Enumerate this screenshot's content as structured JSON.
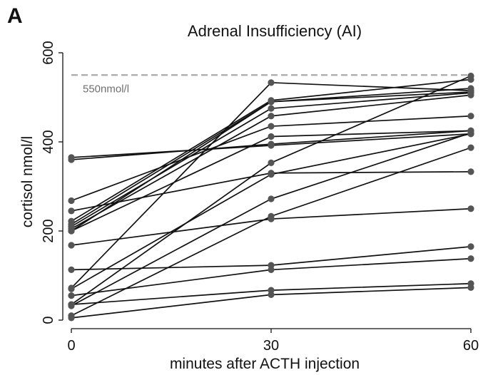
{
  "panel_label": "A",
  "chart_data": {
    "type": "line",
    "title": "Adrenal Insufficiency (AI)",
    "xlabel": "minutes after ACTH injection",
    "ylabel": "cortisol nmol/l",
    "x": [
      0,
      30,
      60
    ],
    "xticks": [
      "0",
      "30",
      "60"
    ],
    "yticks": [
      "0",
      "200",
      "400",
      "600"
    ],
    "ytick_values": [
      0,
      200,
      400,
      600
    ],
    "xlim": [
      0,
      60
    ],
    "ylim": [
      0,
      600
    ],
    "grid": false,
    "reference_line": {
      "value": 550,
      "label": "550nmol/l",
      "style": "dashed",
      "color": "#aaaaaa"
    },
    "line_color": "#111111",
    "marker_color": "#555555",
    "series": [
      {
        "values": [
          365,
          392,
          418
        ]
      },
      {
        "values": [
          360,
          395,
          425
        ]
      },
      {
        "values": [
          268,
          435,
          458
        ]
      },
      {
        "values": [
          245,
          330,
          333
        ]
      },
      {
        "values": [
          222,
          493,
          540
        ]
      },
      {
        "values": [
          215,
          490,
          520
        ]
      },
      {
        "values": [
          210,
          475,
          510
        ]
      },
      {
        "values": [
          205,
          458,
          505
        ]
      },
      {
        "values": [
          200,
          412,
          425
        ]
      },
      {
        "values": [
          200,
          490,
          512
        ]
      },
      {
        "values": [
          72,
          533,
          515
        ]
      },
      {
        "values": [
          70,
          327,
          418
        ]
      },
      {
        "values": [
          168,
          227,
          250
        ]
      },
      {
        "values": [
          113,
          123,
          165
        ]
      },
      {
        "values": [
          55,
          113,
          138
        ]
      },
      {
        "values": [
          35,
          353,
          548
        ]
      },
      {
        "values": [
          32,
          272,
          420
        ]
      },
      {
        "values": [
          10,
          233,
          387
        ]
      },
      {
        "values": [
          5,
          57,
          73
        ]
      },
      {
        "values": [
          35,
          67,
          82
        ]
      }
    ]
  }
}
